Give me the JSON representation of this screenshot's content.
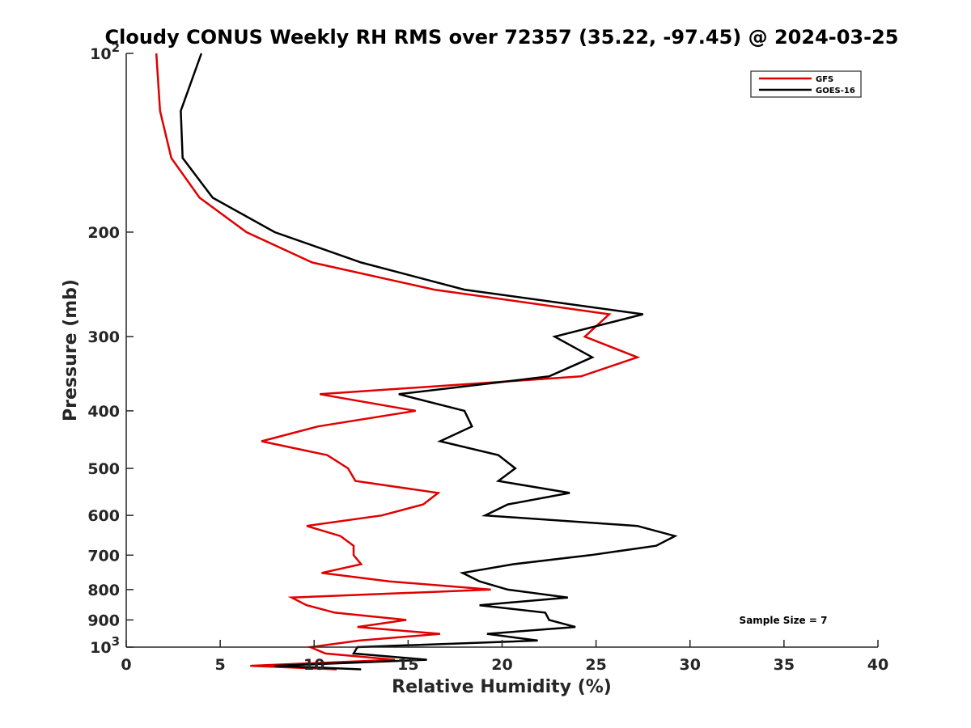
{
  "chart_data": {
    "type": "line",
    "title": "Cloudy CONUS Weekly RH RMS over 72357 (35.22, -97.45) @ 2024-03-25",
    "xlabel": "Relative Humidity (%)",
    "ylabel": "Pressure (mb)",
    "xlim": [
      0,
      40
    ],
    "ylim": [
      100,
      1000
    ],
    "y_scale": "log",
    "y_reversed": true,
    "grid": false,
    "legend_position": "top-right",
    "x_ticks": [
      0,
      5,
      10,
      15,
      20,
      25,
      30,
      35,
      40
    ],
    "x_tick_labels": [
      "0",
      "5",
      "10",
      "15",
      "20",
      "25",
      "30",
      "35",
      "40"
    ],
    "y_ticks": [
      100,
      200,
      300,
      400,
      500,
      600,
      700,
      800,
      900,
      1000
    ],
    "y_tick_labels": [
      {
        "base": "10",
        "exp": "2"
      },
      {
        "base": "200",
        "exp": ""
      },
      {
        "base": "300",
        "exp": ""
      },
      {
        "base": "400",
        "exp": ""
      },
      {
        "base": "500",
        "exp": ""
      },
      {
        "base": "600",
        "exp": ""
      },
      {
        "base": "700",
        "exp": ""
      },
      {
        "base": "800",
        "exp": ""
      },
      {
        "base": "900",
        "exp": ""
      },
      {
        "base": "10",
        "exp": "3"
      }
    ],
    "annotation": "Sample Size = 7",
    "series": [
      {
        "name": "GFS",
        "color": "#e00000",
        "points": [
          [
            1.6,
            100
          ],
          [
            1.8,
            125
          ],
          [
            2.4,
            150
          ],
          [
            3.9,
            175
          ],
          [
            6.4,
            200
          ],
          [
            9.9,
            225
          ],
          [
            16.4,
            250
          ],
          [
            25.7,
            275
          ],
          [
            24.4,
            300
          ],
          [
            27.2,
            325
          ],
          [
            24.2,
            350
          ],
          [
            10.3,
            375
          ],
          [
            15.4,
            400
          ],
          [
            10.2,
            425
          ],
          [
            7.2,
            450
          ],
          [
            10.7,
            475
          ],
          [
            11.8,
            500
          ],
          [
            12.2,
            525
          ],
          [
            16.6,
            550
          ],
          [
            15.8,
            575
          ],
          [
            13.6,
            600
          ],
          [
            9.6,
            625
          ],
          [
            11.4,
            650
          ],
          [
            12.1,
            675
          ],
          [
            12.1,
            700
          ],
          [
            12.5,
            725
          ],
          [
            10.4,
            750
          ],
          [
            14.0,
            775
          ],
          [
            19.4,
            800
          ],
          [
            8.8,
            825
          ],
          [
            9.6,
            850
          ],
          [
            11.1,
            875
          ],
          [
            14.9,
            900
          ],
          [
            12.3,
            925
          ],
          [
            16.7,
            950
          ],
          [
            12.4,
            975
          ],
          [
            9.8,
            1000
          ],
          [
            10.6,
            1025
          ],
          [
            14.3,
            1050
          ],
          [
            6.6,
            1075
          ],
          [
            11.2,
            1090
          ]
        ]
      },
      {
        "name": "GOES-16",
        "color": "#000000",
        "points": [
          [
            4.0,
            100
          ],
          [
            2.9,
            125
          ],
          [
            3.0,
            150
          ],
          [
            4.6,
            175
          ],
          [
            7.9,
            200
          ],
          [
            12.5,
            225
          ],
          [
            18.0,
            250
          ],
          [
            27.5,
            275
          ],
          [
            22.8,
            300
          ],
          [
            24.8,
            325
          ],
          [
            22.5,
            350
          ],
          [
            14.5,
            375
          ],
          [
            18.0,
            400
          ],
          [
            18.4,
            425
          ],
          [
            16.7,
            450
          ],
          [
            19.8,
            475
          ],
          [
            20.7,
            500
          ],
          [
            19.8,
            525
          ],
          [
            23.6,
            550
          ],
          [
            20.3,
            575
          ],
          [
            19.1,
            600
          ],
          [
            27.2,
            625
          ],
          [
            29.2,
            650
          ],
          [
            28.2,
            675
          ],
          [
            24.7,
            700
          ],
          [
            20.6,
            725
          ],
          [
            17.9,
            750
          ],
          [
            18.8,
            775
          ],
          [
            20.3,
            800
          ],
          [
            23.5,
            825
          ],
          [
            18.8,
            850
          ],
          [
            22.3,
            875
          ],
          [
            22.5,
            900
          ],
          [
            23.9,
            925
          ],
          [
            19.2,
            950
          ],
          [
            21.9,
            975
          ],
          [
            12.3,
            1000
          ],
          [
            12.1,
            1025
          ],
          [
            16.0,
            1050
          ],
          [
            7.9,
            1075
          ],
          [
            12.5,
            1090
          ]
        ]
      }
    ]
  }
}
